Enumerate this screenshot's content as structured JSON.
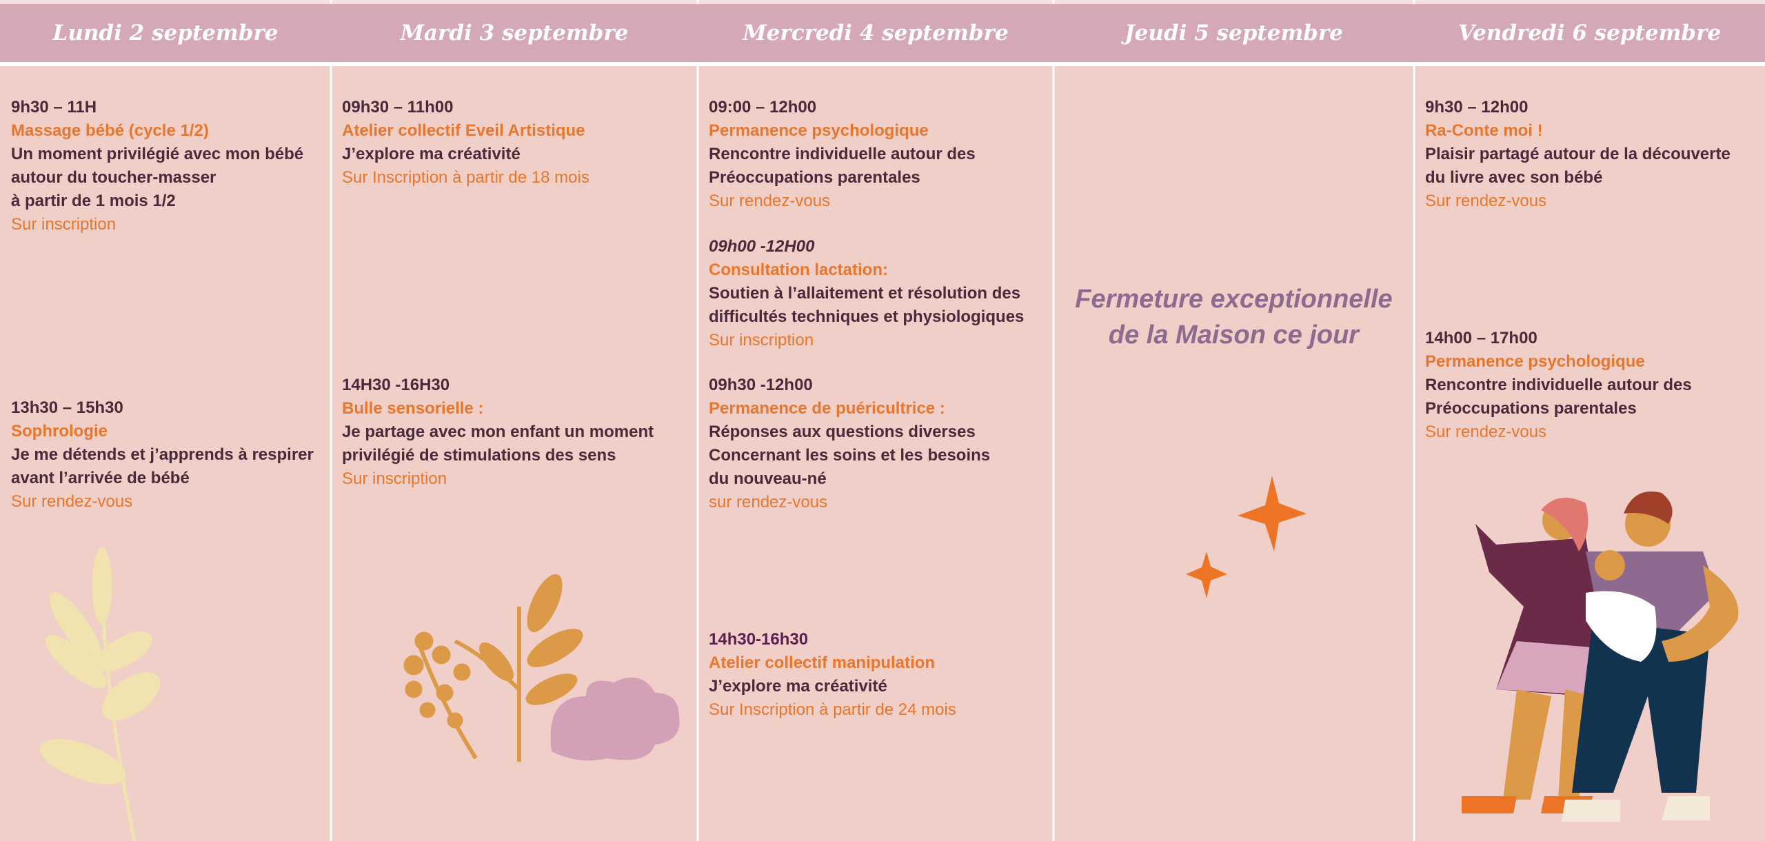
{
  "days": [
    {
      "header": "Lundi 2 septembre",
      "events": [
        {
          "time": "9h30 – 11H",
          "title": "Massage bébé (cycle 1/2)",
          "lines": [
            "Un moment privilégié avec mon bébé",
            "autour du toucher-masser",
            "à partir de 1 mois 1/2"
          ],
          "note": "Sur inscription"
        },
        {
          "time": "13h30 – 15h30",
          "title": "Sophrologie",
          "lines": [
            "Je me détends et j’apprends à respirer",
            "avant l’arrivée de bébé"
          ],
          "note": "Sur rendez-vous"
        }
      ]
    },
    {
      "header": "Mardi 3 septembre",
      "events": [
        {
          "time": "09h30 – 11h00",
          "title": "Atelier collectif Eveil Artistique",
          "lines": [
            "J’explore ma créativité"
          ],
          "note": "Sur Inscription à partir de 18 mois"
        },
        {
          "time": "14H30 -16H30",
          "title": "Bulle sensorielle :",
          "lines": [
            "Je partage avec mon enfant un moment",
            "privilégié de stimulations  des sens"
          ],
          "note": "Sur inscription"
        }
      ]
    },
    {
      "header": "Mercredi 4 septembre",
      "events": [
        {
          "time": "09:00 – 12h00",
          "title": "Permanence psychologique",
          "lines": [
            "Rencontre individuelle autour des",
            "Préoccupations parentales"
          ],
          "note": "Sur rendez-vous"
        },
        {
          "time": "09h00 -12H00",
          "title": "Consultation lactation:",
          "lines": [
            "Soutien à l’allaitement et résolution des",
            "difficultés techniques et physiologiques"
          ],
          "note": "Sur inscription"
        },
        {
          "time": "09h30 -12h00",
          "title": "Permanence de puéricultrice :",
          "lines": [
            "Réponses aux questions diverses",
            "Concernant les soins et les besoins",
            "du nouveau-né"
          ],
          "note": "sur rendez-vous"
        },
        {
          "time": "14h30-16h30",
          "title": "Atelier collectif manipulation",
          "lines": [
            "J’explore ma créativité"
          ],
          "note": "Sur Inscription à partir de 24 mois"
        }
      ]
    },
    {
      "header": "Jeudi 5 septembre",
      "closure": [
        "Fermeture exceptionnelle",
        "de la Maison ce jour"
      ]
    },
    {
      "header": "Vendredi 6 septembre",
      "events": [
        {
          "time": "9h30 – 12h00",
          "title": "Ra-Conte moi !",
          "lines": [
            "Plaisir partagé autour de la découverte",
            "du livre avec son bébé"
          ],
          "note": "Sur rendez-vous"
        },
        {
          "time": "14h00 – 17h00",
          "title": "Permanence psychologique",
          "lines": [
            "Rencontre individuelle autour des",
            "Préoccupations parentales"
          ],
          "note": "Sur rendez-vous"
        }
      ]
    }
  ]
}
